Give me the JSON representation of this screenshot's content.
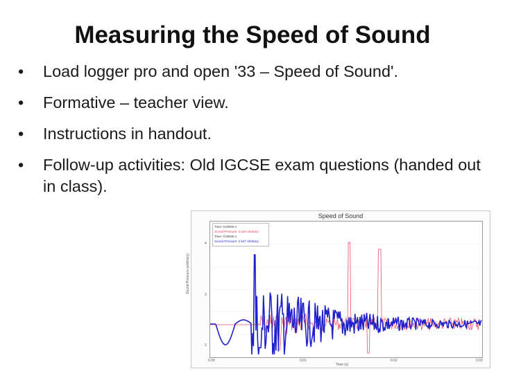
{
  "slide": {
    "title": "Measuring the Speed of Sound",
    "bullet_symbol": "•",
    "bullets": [
      "Load logger pro and open '33 – Speed of Sound'.",
      "Formative – teacher view.",
      "Instructions in handout.",
      "Follow-up activities: Old IGCSE exam questions (handed out in class)."
    ]
  },
  "graph": {
    "title": "Speed of Sound",
    "legend": [
      "Time: 0.00946 s",
      "Sound Pressure: 2.520 arbitrary",
      "Time: 0.00946 s",
      "Sound Pressure: 2.547 arbitrary"
    ],
    "y_axis_label": "Sound Pressure (arbitrary)",
    "x_axis_label": "Time (s)",
    "x_ticks": [
      "0.00",
      "0.01",
      "0.02",
      "0.03"
    ],
    "y_ticks": [
      "4",
      "3",
      "2"
    ],
    "colors": {
      "red": "#e8506a",
      "blue": "#1f1fcc",
      "frame": "#c9c9c9"
    }
  }
}
